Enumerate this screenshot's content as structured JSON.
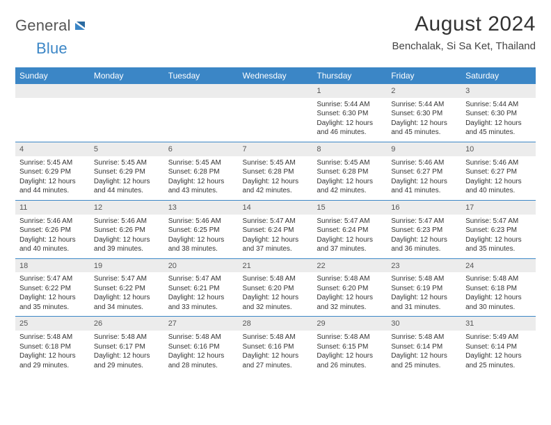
{
  "brand": {
    "part1": "General",
    "part2": "Blue"
  },
  "title": "August 2024",
  "location": "Benchalak, Si Sa Ket, Thailand",
  "colors": {
    "header_bg": "#3b86c6",
    "header_text": "#ffffff",
    "daynum_bg": "#ececec",
    "rule": "#3b86c6",
    "text": "#333333",
    "brand_gray": "#555555",
    "brand_blue": "#3b86c6",
    "page_bg": "#ffffff"
  },
  "fonts": {
    "title_size_pt": 22,
    "location_size_pt": 11,
    "header_size_pt": 9,
    "body_size_pt": 7.5
  },
  "day_headers": [
    "Sunday",
    "Monday",
    "Tuesday",
    "Wednesday",
    "Thursday",
    "Friday",
    "Saturday"
  ],
  "weeks": [
    [
      null,
      null,
      null,
      null,
      {
        "n": "1",
        "sr": "Sunrise: 5:44 AM",
        "ss": "Sunset: 6:30 PM",
        "d1": "Daylight: 12 hours",
        "d2": "and 46 minutes."
      },
      {
        "n": "2",
        "sr": "Sunrise: 5:44 AM",
        "ss": "Sunset: 6:30 PM",
        "d1": "Daylight: 12 hours",
        "d2": "and 45 minutes."
      },
      {
        "n": "3",
        "sr": "Sunrise: 5:44 AM",
        "ss": "Sunset: 6:30 PM",
        "d1": "Daylight: 12 hours",
        "d2": "and 45 minutes."
      }
    ],
    [
      {
        "n": "4",
        "sr": "Sunrise: 5:45 AM",
        "ss": "Sunset: 6:29 PM",
        "d1": "Daylight: 12 hours",
        "d2": "and 44 minutes."
      },
      {
        "n": "5",
        "sr": "Sunrise: 5:45 AM",
        "ss": "Sunset: 6:29 PM",
        "d1": "Daylight: 12 hours",
        "d2": "and 44 minutes."
      },
      {
        "n": "6",
        "sr": "Sunrise: 5:45 AM",
        "ss": "Sunset: 6:28 PM",
        "d1": "Daylight: 12 hours",
        "d2": "and 43 minutes."
      },
      {
        "n": "7",
        "sr": "Sunrise: 5:45 AM",
        "ss": "Sunset: 6:28 PM",
        "d1": "Daylight: 12 hours",
        "d2": "and 42 minutes."
      },
      {
        "n": "8",
        "sr": "Sunrise: 5:45 AM",
        "ss": "Sunset: 6:28 PM",
        "d1": "Daylight: 12 hours",
        "d2": "and 42 minutes."
      },
      {
        "n": "9",
        "sr": "Sunrise: 5:46 AM",
        "ss": "Sunset: 6:27 PM",
        "d1": "Daylight: 12 hours",
        "d2": "and 41 minutes."
      },
      {
        "n": "10",
        "sr": "Sunrise: 5:46 AM",
        "ss": "Sunset: 6:27 PM",
        "d1": "Daylight: 12 hours",
        "d2": "and 40 minutes."
      }
    ],
    [
      {
        "n": "11",
        "sr": "Sunrise: 5:46 AM",
        "ss": "Sunset: 6:26 PM",
        "d1": "Daylight: 12 hours",
        "d2": "and 40 minutes."
      },
      {
        "n": "12",
        "sr": "Sunrise: 5:46 AM",
        "ss": "Sunset: 6:26 PM",
        "d1": "Daylight: 12 hours",
        "d2": "and 39 minutes."
      },
      {
        "n": "13",
        "sr": "Sunrise: 5:46 AM",
        "ss": "Sunset: 6:25 PM",
        "d1": "Daylight: 12 hours",
        "d2": "and 38 minutes."
      },
      {
        "n": "14",
        "sr": "Sunrise: 5:47 AM",
        "ss": "Sunset: 6:24 PM",
        "d1": "Daylight: 12 hours",
        "d2": "and 37 minutes."
      },
      {
        "n": "15",
        "sr": "Sunrise: 5:47 AM",
        "ss": "Sunset: 6:24 PM",
        "d1": "Daylight: 12 hours",
        "d2": "and 37 minutes."
      },
      {
        "n": "16",
        "sr": "Sunrise: 5:47 AM",
        "ss": "Sunset: 6:23 PM",
        "d1": "Daylight: 12 hours",
        "d2": "and 36 minutes."
      },
      {
        "n": "17",
        "sr": "Sunrise: 5:47 AM",
        "ss": "Sunset: 6:23 PM",
        "d1": "Daylight: 12 hours",
        "d2": "and 35 minutes."
      }
    ],
    [
      {
        "n": "18",
        "sr": "Sunrise: 5:47 AM",
        "ss": "Sunset: 6:22 PM",
        "d1": "Daylight: 12 hours",
        "d2": "and 35 minutes."
      },
      {
        "n": "19",
        "sr": "Sunrise: 5:47 AM",
        "ss": "Sunset: 6:22 PM",
        "d1": "Daylight: 12 hours",
        "d2": "and 34 minutes."
      },
      {
        "n": "20",
        "sr": "Sunrise: 5:47 AM",
        "ss": "Sunset: 6:21 PM",
        "d1": "Daylight: 12 hours",
        "d2": "and 33 minutes."
      },
      {
        "n": "21",
        "sr": "Sunrise: 5:48 AM",
        "ss": "Sunset: 6:20 PM",
        "d1": "Daylight: 12 hours",
        "d2": "and 32 minutes."
      },
      {
        "n": "22",
        "sr": "Sunrise: 5:48 AM",
        "ss": "Sunset: 6:20 PM",
        "d1": "Daylight: 12 hours",
        "d2": "and 32 minutes."
      },
      {
        "n": "23",
        "sr": "Sunrise: 5:48 AM",
        "ss": "Sunset: 6:19 PM",
        "d1": "Daylight: 12 hours",
        "d2": "and 31 minutes."
      },
      {
        "n": "24",
        "sr": "Sunrise: 5:48 AM",
        "ss": "Sunset: 6:18 PM",
        "d1": "Daylight: 12 hours",
        "d2": "and 30 minutes."
      }
    ],
    [
      {
        "n": "25",
        "sr": "Sunrise: 5:48 AM",
        "ss": "Sunset: 6:18 PM",
        "d1": "Daylight: 12 hours",
        "d2": "and 29 minutes."
      },
      {
        "n": "26",
        "sr": "Sunrise: 5:48 AM",
        "ss": "Sunset: 6:17 PM",
        "d1": "Daylight: 12 hours",
        "d2": "and 29 minutes."
      },
      {
        "n": "27",
        "sr": "Sunrise: 5:48 AM",
        "ss": "Sunset: 6:16 PM",
        "d1": "Daylight: 12 hours",
        "d2": "and 28 minutes."
      },
      {
        "n": "28",
        "sr": "Sunrise: 5:48 AM",
        "ss": "Sunset: 6:16 PM",
        "d1": "Daylight: 12 hours",
        "d2": "and 27 minutes."
      },
      {
        "n": "29",
        "sr": "Sunrise: 5:48 AM",
        "ss": "Sunset: 6:15 PM",
        "d1": "Daylight: 12 hours",
        "d2": "and 26 minutes."
      },
      {
        "n": "30",
        "sr": "Sunrise: 5:48 AM",
        "ss": "Sunset: 6:14 PM",
        "d1": "Daylight: 12 hours",
        "d2": "and 25 minutes."
      },
      {
        "n": "31",
        "sr": "Sunrise: 5:49 AM",
        "ss": "Sunset: 6:14 PM",
        "d1": "Daylight: 12 hours",
        "d2": "and 25 minutes."
      }
    ]
  ]
}
